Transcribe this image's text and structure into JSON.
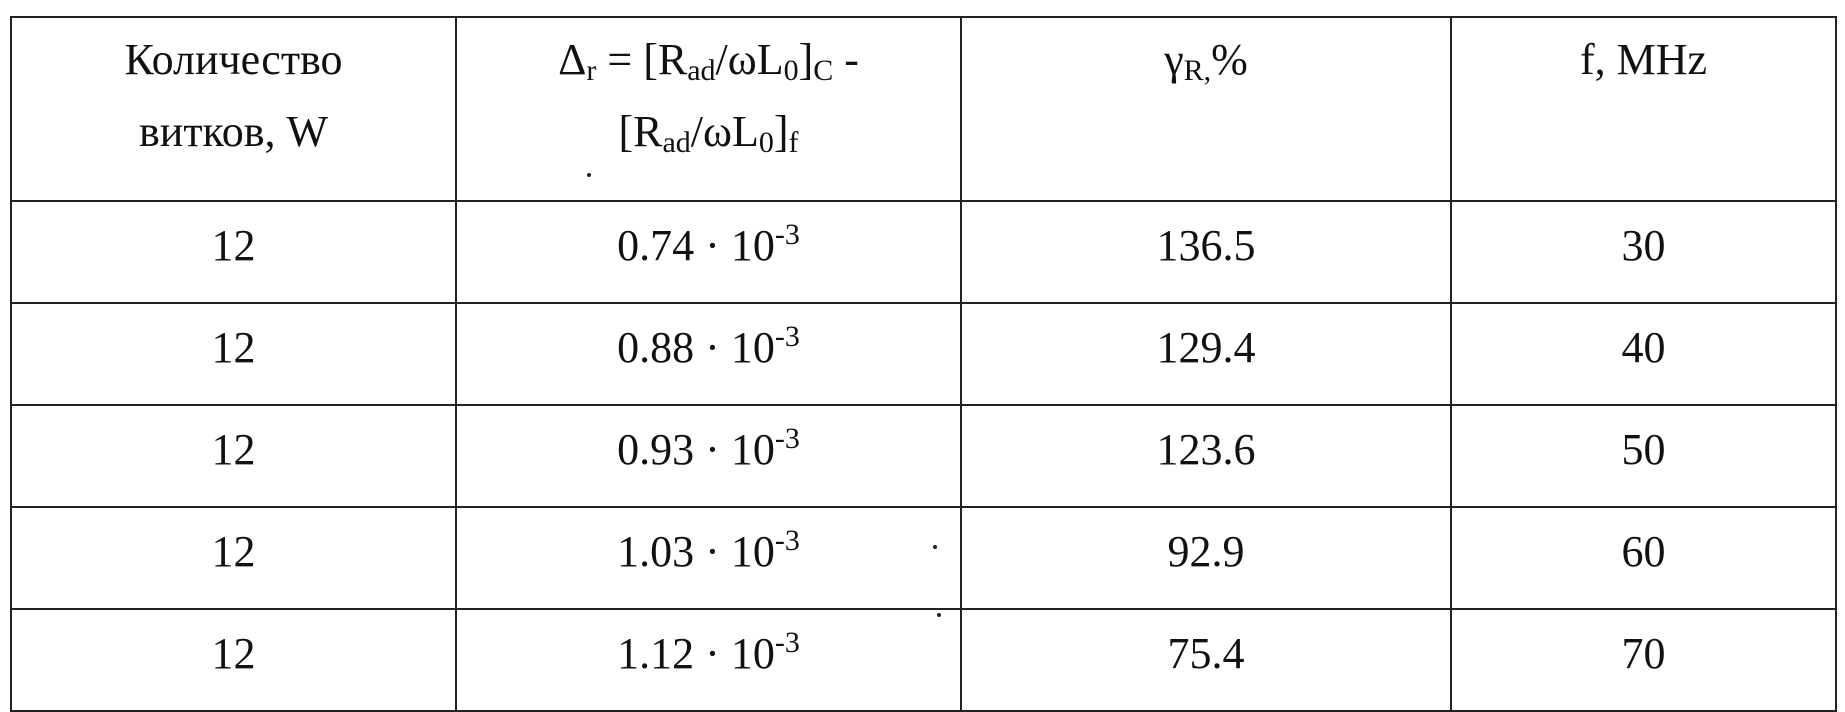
{
  "table": {
    "headers": {
      "col1": {
        "line1": "Количество",
        "line2": "витков, W"
      },
      "col2": {
        "delta": "Δ",
        "delta_sub": "r",
        "eq": " = [R",
        "rad_sub": "ad",
        "mid": "/ωL",
        "l0_sub": "0",
        "close1": "]",
        "c_sub": "C",
        "dash": " -",
        "open2": "[R",
        "rad_sub2": "ad",
        "mid2": "/ωL",
        "l0_sub2": "0",
        "close2": "]",
        "f_sub": "f"
      },
      "col3": {
        "gamma": "γ",
        "gamma_sub": "R,",
        "unit": "%"
      },
      "col4": {
        "label": "f, MHz"
      }
    },
    "rows": [
      {
        "w": "12",
        "delta_mant": "0.74 · 10",
        "delta_exp": "-3",
        "gamma": "136.5",
        "f": "30"
      },
      {
        "w": "12",
        "delta_mant": "0.88 · 10",
        "delta_exp": "-3",
        "gamma": "129.4",
        "f": "40"
      },
      {
        "w": "12",
        "delta_mant": "0.93 · 10",
        "delta_exp": "-3",
        "gamma": "123.6",
        "f": "50"
      },
      {
        "w": "12",
        "delta_mant": "1.03 · 10",
        "delta_exp": "-3",
        "gamma": "92.9",
        "f": "60"
      },
      {
        "w": "12",
        "delta_mant": "1.12 · 10",
        "delta_exp": "-3",
        "gamma": "75.4",
        "f": "70"
      }
    ]
  }
}
